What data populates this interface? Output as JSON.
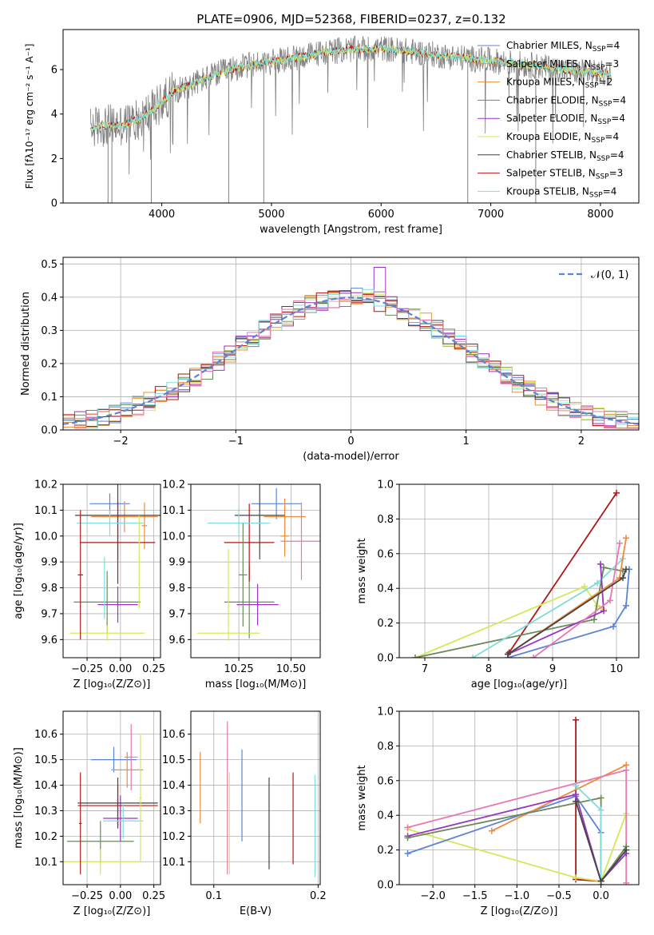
{
  "figure": {
    "title": "PLATE=0906, MJD=52368, FIBERID=0237, z=0.132",
    "colors": {
      "chabrier_miles": "#5b84d6",
      "salpeter_miles": "#f08a3c",
      "kroupa_miles": "#e8903a",
      "chabrier_elodie": "#6a8a5a",
      "salpeter_elodie": "#9a33c2",
      "kroupa_elodie": "#d4e85a",
      "chabrier_stelib": "#444444",
      "salpeter_stelib": "#b01818",
      "kroupa_stelib": "#7fdcdc",
      "pink": "#e878b0",
      "grid": "#b0b0b0"
    }
  },
  "chart_data": [
    {
      "id": "spectrum",
      "type": "line",
      "xlabel": "wavelength [Angstrom, rest frame]",
      "ylabel": "Flux [fλ10⁻¹⁷ erg cm⁻² s⁻¹ A⁻¹]",
      "xlim": [
        3100,
        8350
      ],
      "ylim": [
        0,
        7.8
      ],
      "xticks": [
        4000,
        5000,
        6000,
        7000,
        8000
      ],
      "yticks": [
        0,
        2,
        4,
        6
      ],
      "grid": false,
      "legend": [
        {
          "label": "Chabrier MILES, N",
          "sub": "SSP",
          "suffix": "=4",
          "color": "chabrier_miles"
        },
        {
          "label": "Salpeter MILES, N",
          "sub": "SSP",
          "suffix": "=3",
          "color": "salpeter_miles"
        },
        {
          "label": "Kroupa MILES, N",
          "sub": "SSP",
          "suffix": "=2",
          "color": "kroupa_miles"
        },
        {
          "label": "Chabrier ELODIE, N",
          "sub": "SSP",
          "suffix": "=4",
          "color": "chabrier_elodie"
        },
        {
          "label": "Salpeter ELODIE, N",
          "sub": "SSP",
          "suffix": "=4",
          "color": "salpeter_elodie"
        },
        {
          "label": "Kroupa ELODIE, N",
          "sub": "SSP",
          "suffix": "=4",
          "color": "kroupa_elodie"
        },
        {
          "label": "Chabrier STELIB, N",
          "sub": "SSP",
          "suffix": "=4",
          "color": "chabrier_stelib"
        },
        {
          "label": "Salpeter STELIB, N",
          "sub": "SSP",
          "suffix": "=3",
          "color": "salpeter_stelib"
        },
        {
          "label": "Kroupa STELIB, N",
          "sub": "SSP",
          "suffix": "=4",
          "color": "kroupa_stelib"
        }
      ],
      "continuum": {
        "x": [
          3350,
          3500,
          3650,
          3800,
          3950,
          4100,
          4300,
          4500,
          4700,
          4900,
          5100,
          5300,
          5500,
          5700,
          6000,
          6300,
          6600,
          6900,
          7200,
          7500,
          7800,
          8080
        ],
        "y": [
          3.4,
          3.5,
          3.5,
          3.8,
          4.3,
          5.0,
          5.4,
          5.8,
          6.1,
          6.3,
          6.4,
          6.6,
          6.8,
          6.9,
          6.95,
          6.8,
          6.6,
          6.45,
          6.3,
          6.1,
          5.9,
          5.8
        ]
      },
      "data_curve": {
        "x_range": [
          3350,
          8100
        ],
        "y_scatter": 0.6,
        "dropouts": [
          3510,
          3545,
          3905,
          4610,
          4930,
          6790,
          7410
        ]
      }
    },
    {
      "id": "residuals",
      "type": "line",
      "xlabel": "(data-model)/error",
      "ylabel": "Normed distribution",
      "xlim": [
        -2.5,
        2.5
      ],
      "ylim": [
        0,
        0.52
      ],
      "xticks": [
        -2,
        -1,
        0,
        1,
        2
      ],
      "yticks": [
        0.0,
        0.1,
        0.2,
        0.3,
        0.4,
        0.5
      ],
      "grid": true,
      "legend": [
        {
          "label": "𝒩(0, 1)",
          "color": "chabrier_miles",
          "style": "dashed"
        }
      ],
      "bin_width": 0.1,
      "peak_values": {
        "x": 0.25,
        "y": 0.49
      }
    },
    {
      "id": "age-vs-Z",
      "type": "scatter",
      "xlabel": "Z [log₁₀(Z/Z⊙)]",
      "ylabel": "age  [log₁₀(age/yr)]",
      "xlim": [
        -0.43,
        0.3
      ],
      "ylim": [
        9.53,
        10.2
      ],
      "xticks": [
        -0.25,
        0.0,
        0.25
      ],
      "yticks": [
        9.6,
        9.7,
        9.8,
        9.9,
        10.0,
        10.1,
        10.2
      ],
      "grid": true,
      "errorbars": [
        {
          "x": -0.08,
          "xerr": 0.15,
          "y": 10.125,
          "yerr": 0.04,
          "color": "chabrier_miles"
        },
        {
          "x": 0.03,
          "xerr": 0.25,
          "y": 10.075,
          "yerr": 0.06,
          "color": "salpeter_miles"
        },
        {
          "x": 0.18,
          "xerr": 0.02,
          "y": 10.04,
          "yerr": 0.09,
          "color": "kroupa_miles"
        },
        {
          "x": -0.1,
          "xerr": 0.25,
          "y": 9.745,
          "yerr": 0.12,
          "color": "chabrier_elodie"
        },
        {
          "x": -0.02,
          "xerr": 0.15,
          "y": 9.735,
          "yerr": 0.07,
          "color": "salpeter_elodie"
        },
        {
          "x": -0.1,
          "xerr": 0.28,
          "y": 9.625,
          "yerr": 0.03,
          "color": "kroupa_elodie"
        },
        {
          "x": -0.02,
          "xerr": 0.32,
          "y": 10.08,
          "yerr": 0.17,
          "color": "chabrier_stelib"
        },
        {
          "x": -0.02,
          "xerr": 0.28,
          "y": 9.975,
          "yerr": 0.16,
          "color": "salpeter_stelib"
        },
        {
          "x": -0.08,
          "xerr": 0.25,
          "y": 10.05,
          "yerr": 0.05,
          "color": "kroupa_stelib"
        },
        {
          "x": -0.3,
          "xerr": 0.02,
          "y": 9.85,
          "yerr": 0.25,
          "color": "salpeter_stelib"
        },
        {
          "x": 0.14,
          "xerr": 0.02,
          "y": 9.9,
          "yerr": 0.18,
          "color": "kroupa_elodie"
        },
        {
          "x": -0.12,
          "xerr": 0.02,
          "y": 9.8,
          "yerr": 0.12,
          "color": "kroupa_stelib"
        }
      ]
    },
    {
      "id": "age-vs-mass",
      "type": "scatter",
      "xlabel": "mass [log₁₀(M/M⊙)]",
      "ylabel": "",
      "xlim": [
        10.02,
        10.64
      ],
      "ylim": [
        9.53,
        10.2
      ],
      "xticks": [
        10.25,
        10.5
      ],
      "yticks": [
        9.6,
        9.7,
        9.8,
        9.9,
        10.0,
        10.1,
        10.2
      ],
      "grid": true,
      "errorbars": [
        {
          "x": 10.43,
          "xerr": 0.12,
          "y": 10.125,
          "yerr": 0.06,
          "color": "chabrier_miles"
        },
        {
          "x": 10.47,
          "xerr": 0.1,
          "y": 10.075,
          "yerr": 0.07,
          "color": "salpeter_miles"
        },
        {
          "x": 10.47,
          "xerr": 0.02,
          "y": 10.0,
          "yerr": 0.08,
          "color": "kroupa_miles"
        },
        {
          "x": 10.3,
          "xerr": 0.12,
          "y": 9.745,
          "yerr": 0.14,
          "color": "chabrier_elodie"
        },
        {
          "x": 10.34,
          "xerr": 0.1,
          "y": 9.735,
          "yerr": 0.08,
          "color": "salpeter_elodie"
        },
        {
          "x": 10.2,
          "xerr": 0.15,
          "y": 9.625,
          "yerr": 0.03,
          "color": "kroupa_elodie"
        },
        {
          "x": 10.35,
          "xerr": 0.12,
          "y": 10.08,
          "yerr": 0.17,
          "color": "chabrier_stelib"
        },
        {
          "x": 10.3,
          "xerr": 0.12,
          "y": 9.975,
          "yerr": 0.15,
          "color": "salpeter_stelib"
        },
        {
          "x": 10.25,
          "xerr": 0.15,
          "y": 10.05,
          "yerr": 0.06,
          "color": "kroupa_stelib"
        },
        {
          "x": 10.55,
          "xerr": 0.1,
          "y": 9.98,
          "yerr": 0.15,
          "color": "pink"
        },
        {
          "x": 10.2,
          "xerr": 0.02,
          "y": 9.8,
          "yerr": 0.15,
          "color": "kroupa_elodie"
        },
        {
          "x": 10.27,
          "xerr": 0.02,
          "y": 9.85,
          "yerr": 0.2,
          "color": "chabrier_elodie"
        }
      ]
    },
    {
      "id": "massweight-vs-age",
      "type": "line",
      "xlabel": "age  [log₁₀(age/yr)]",
      "ylabel": "mass weight",
      "xlim": [
        6.6,
        10.35
      ],
      "ylim": [
        0,
        1.0
      ],
      "xticks": [
        7,
        8,
        9,
        10
      ],
      "yticks": [
        0.0,
        0.2,
        0.4,
        0.6,
        0.8,
        1.0
      ],
      "grid": true,
      "series": [
        {
          "color": "salpeter_stelib",
          "points": [
            [
              8.3,
              0.02
            ],
            [
              8.32,
              0.03
            ],
            [
              10.0,
              0.95
            ]
          ]
        },
        {
          "color": "kroupa_elodie",
          "points": [
            [
              6.85,
              0.0
            ],
            [
              9.5,
              0.41
            ],
            [
              9.7,
              0.3
            ],
            [
              9.8,
              0.28
            ]
          ]
        },
        {
          "color": "chabrier_elodie",
          "points": [
            [
              6.85,
              0.0
            ],
            [
              9.65,
              0.22
            ],
            [
              9.8,
              0.52
            ],
            [
              10.1,
              0.5
            ]
          ]
        },
        {
          "color": "kroupa_stelib",
          "points": [
            [
              7.75,
              0.0
            ],
            [
              9.7,
              0.43
            ],
            [
              10.1,
              0.57
            ]
          ]
        },
        {
          "color": "chabrier_miles",
          "points": [
            [
              8.3,
              0.0
            ],
            [
              9.95,
              0.18
            ],
            [
              10.15,
              0.3
            ],
            [
              10.2,
              0.51
            ]
          ]
        },
        {
          "color": "salpeter_elodie",
          "points": [
            [
              8.3,
              0.02
            ],
            [
              9.8,
              0.27
            ],
            [
              9.75,
              0.54
            ]
          ]
        },
        {
          "color": "salpeter_miles",
          "points": [
            [
              8.3,
              0.02
            ],
            [
              10.05,
              0.46
            ],
            [
              10.15,
              0.69
            ]
          ]
        },
        {
          "color": "pink",
          "points": [
            [
              8.7,
              0.0
            ],
            [
              9.9,
              0.33
            ],
            [
              10.05,
              0.66
            ]
          ]
        },
        {
          "color": "chabrier_stelib",
          "points": [
            [
              8.3,
              0.02
            ],
            [
              10.1,
              0.46
            ],
            [
              10.15,
              0.51
            ]
          ]
        }
      ]
    },
    {
      "id": "mass-vs-Z",
      "type": "scatter",
      "xlabel": "Z [log₁₀(Z/Z⊙)]",
      "ylabel": "mass [log₁₀(M/M⊙)]",
      "xlim": [
        -0.43,
        0.3
      ],
      "ylim": [
        10.01,
        10.69
      ],
      "xticks": [
        -0.25,
        0.0,
        0.25
      ],
      "yticks": [
        10.1,
        10.2,
        10.3,
        10.4,
        10.5,
        10.6
      ],
      "grid": true,
      "errorbars": [
        {
          "x": -0.05,
          "xerr": 0.17,
          "y": 10.5,
          "yerr": 0.05,
          "color": "chabrier_miles"
        },
        {
          "x": 0.05,
          "xerr": 0.12,
          "y": 10.46,
          "yerr": 0.07,
          "color": "salpeter_miles"
        },
        {
          "x": 0.08,
          "xerr": 0.05,
          "y": 10.51,
          "yerr": 0.13,
          "color": "pink"
        },
        {
          "x": -0.15,
          "xerr": 0.25,
          "y": 10.18,
          "yerr": 0.08,
          "color": "chabrier_elodie"
        },
        {
          "x": 0.0,
          "xerr": 0.13,
          "y": 10.27,
          "yerr": 0.09,
          "color": "salpeter_elodie"
        },
        {
          "x": -0.15,
          "xerr": 0.28,
          "y": 10.1,
          "yerr": 0.05,
          "color": "kroupa_elodie"
        },
        {
          "x": -0.02,
          "xerr": 0.3,
          "y": 10.33,
          "yerr": 0.1,
          "color": "chabrier_stelib"
        },
        {
          "x": -0.02,
          "xerr": 0.3,
          "y": 10.32,
          "yerr": 0.08,
          "color": "salpeter_stelib"
        },
        {
          "x": 0.02,
          "xerr": 0.15,
          "y": 10.26,
          "yerr": 0.07,
          "color": "kroupa_stelib"
        },
        {
          "x": -0.3,
          "xerr": 0.01,
          "y": 10.25,
          "yerr": 0.2,
          "color": "salpeter_stelib"
        },
        {
          "x": 0.15,
          "xerr": 0.01,
          "y": 10.35,
          "yerr": 0.25,
          "color": "kroupa_elodie"
        }
      ]
    },
    {
      "id": "mass-vs-EBV",
      "type": "scatter",
      "xlabel": "E(B-V)",
      "ylabel": "",
      "xlim": [
        0.078,
        0.202
      ],
      "ylim": [
        10.01,
        10.69
      ],
      "xticks": [
        0.1,
        0.2
      ],
      "yticks": [
        10.1,
        10.2,
        10.3,
        10.4,
        10.5,
        10.6
      ],
      "grid": true,
      "errorbars": [
        {
          "x": 0.087,
          "y": 10.39,
          "yerr": 0.14,
          "color": "salpeter_miles"
        },
        {
          "x": 0.113,
          "y": 10.35,
          "yerr": 0.3,
          "color": "pink"
        },
        {
          "x": 0.115,
          "y": 10.25,
          "yerr": 0.2,
          "color": "kroupa_elodie"
        },
        {
          "x": 0.127,
          "y": 10.36,
          "yerr": 0.18,
          "color": "chabrier_miles"
        },
        {
          "x": 0.153,
          "y": 10.25,
          "yerr": 0.18,
          "color": "chabrier_stelib"
        },
        {
          "x": 0.176,
          "y": 10.27,
          "yerr": 0.18,
          "color": "salpeter_stelib"
        },
        {
          "x": 0.197,
          "y": 10.24,
          "yerr": 0.2,
          "color": "kroupa_stelib"
        }
      ]
    },
    {
      "id": "massweight-vs-Z",
      "type": "line",
      "xlabel": "Z [log₁₀(Z/Z⊙)]",
      "ylabel": "mass weight",
      "xlim": [
        -2.4,
        0.45
      ],
      "ylim": [
        0,
        1.0
      ],
      "xticks": [
        -2.0,
        -1.5,
        -1.0,
        -0.5,
        0.0
      ],
      "yticks": [
        0.0,
        0.2,
        0.4,
        0.6,
        0.8,
        1.0
      ],
      "grid": true,
      "series": [
        {
          "color": "salpeter_stelib",
          "points": [
            [
              -0.3,
              0.95
            ],
            [
              -0.3,
              0.03
            ],
            [
              0.0,
              0.02
            ]
          ]
        },
        {
          "color": "kroupa_elodie",
          "points": [
            [
              -2.3,
              0.32
            ],
            [
              -0.3,
              0.04
            ],
            [
              0.0,
              0.02
            ],
            [
              0.3,
              0.41
            ]
          ]
        },
        {
          "color": "chabrier_miles",
          "points": [
            [
              -2.3,
              0.18
            ],
            [
              -0.3,
              0.51
            ],
            [
              0.0,
              0.3
            ],
            [
              0.0,
              0.0
            ]
          ]
        },
        {
          "color": "salpeter_miles",
          "points": [
            [
              -1.3,
              0.31
            ],
            [
              0.3,
              0.69
            ]
          ]
        },
        {
          "color": "pink",
          "points": [
            [
              -2.3,
              0.33
            ],
            [
              0.3,
              0.66
            ],
            [
              0.3,
              0.01
            ]
          ]
        },
        {
          "color": "salpeter_elodie",
          "points": [
            [
              -2.3,
              0.28
            ],
            [
              -0.3,
              0.52
            ],
            [
              0.0,
              0.02
            ],
            [
              0.3,
              0.18
            ]
          ]
        },
        {
          "color": "chabrier_elodie",
          "points": [
            [
              -2.3,
              0.27
            ],
            [
              0.0,
              0.5
            ],
            [
              0.0,
              0.02
            ],
            [
              0.3,
              0.22
            ]
          ]
        },
        {
          "color": "kroupa_stelib",
          "points": [
            [
              -0.3,
              0.57
            ],
            [
              0.0,
              0.43
            ],
            [
              0.0,
              0.0
            ]
          ]
        },
        {
          "color": "chabrier_stelib",
          "points": [
            [
              -0.3,
              0.48
            ],
            [
              0.0,
              0.02
            ],
            [
              0.3,
              0.2
            ]
          ]
        }
      ]
    }
  ]
}
